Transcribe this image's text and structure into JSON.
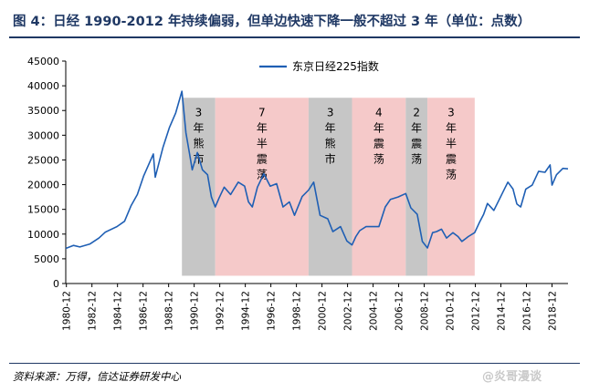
{
  "title": "图 4：日经 1990-2012 年持续偏弱，但单边快速下降一般不超过 3 年（单位：点数）",
  "source": "资料来源：万得，信达证券研发中心",
  "watermark": "@炎哥漫谈",
  "colors": {
    "line": "#1f5fb4",
    "bear": "#c6c6c6",
    "range": "#f5c9c9",
    "title": "#1f3864"
  },
  "chart_data": {
    "type": "line",
    "title": "",
    "xlabel": "",
    "ylabel": "",
    "ylim": [
      0,
      45000
    ],
    "yticks": [
      0,
      5000,
      10000,
      15000,
      20000,
      25000,
      30000,
      35000,
      40000,
      45000
    ],
    "xticks": [
      "1980-12",
      "1982-12",
      "1984-12",
      "1986-12",
      "1988-12",
      "1990-12",
      "1992-12",
      "1994-12",
      "1996-12",
      "1998-12",
      "2000-12",
      "2002-12",
      "2004-12",
      "2006-12",
      "2008-12",
      "2010-12",
      "2012-12",
      "2014-12",
      "2016-12",
      "2018-12"
    ],
    "xlim": [
      1980.9,
      2020.2
    ],
    "grid": false,
    "legend": "top-center",
    "series": [
      {
        "name": "东京日经225指数",
        "x": [
          1980.9,
          1981.5,
          1982.0,
          1982.8,
          1983.5,
          1984.0,
          1984.9,
          1985.5,
          1986.0,
          1986.5,
          1987.0,
          1987.75,
          1987.9,
          1988.5,
          1989.0,
          1989.5,
          1989.99,
          1990.3,
          1990.6,
          1990.8,
          1991.2,
          1991.6,
          1992.0,
          1992.3,
          1992.6,
          1992.9,
          1993.3,
          1993.8,
          1994.4,
          1994.9,
          1995.2,
          1995.5,
          1995.9,
          1996.4,
          1996.9,
          1997.4,
          1997.9,
          1998.4,
          1998.8,
          1999.4,
          1999.9,
          2000.3,
          2000.8,
          2001.4,
          2001.8,
          2002.4,
          2002.9,
          2003.3,
          2003.6,
          2003.9,
          2004.4,
          2004.9,
          2005.4,
          2005.9,
          2006.3,
          2006.9,
          2007.5,
          2007.9,
          2008.4,
          2008.8,
          2009.2,
          2009.6,
          2009.9,
          2010.3,
          2010.7,
          2011.2,
          2011.6,
          2011.9,
          2012.4,
          2012.9,
          2013.3,
          2013.6,
          2013.9,
          2014.4,
          2014.9,
          2015.3,
          2015.5,
          2015.9,
          2016.2,
          2016.5,
          2016.9,
          2017.4,
          2017.9,
          2018.4,
          2018.8,
          2018.95,
          2019.3,
          2019.8,
          2020.2
        ],
        "values": [
          7100,
          7700,
          7400,
          8000,
          9200,
          10400,
          11500,
          12600,
          15700,
          18000,
          21800,
          26200,
          21500,
          27500,
          31500,
          34500,
          38900,
          30500,
          26000,
          23000,
          26500,
          23000,
          22000,
          17500,
          15500,
          17300,
          19500,
          18000,
          20500,
          19700,
          16500,
          15500,
          19500,
          22200,
          19700,
          20200,
          15500,
          16500,
          13800,
          17600,
          18900,
          20500,
          13800,
          13100,
          10500,
          11500,
          8600,
          7800,
          9500,
          10700,
          11500,
          11500,
          11500,
          15500,
          17000,
          17500,
          18200,
          15300,
          14000,
          8500,
          7200,
          10300,
          10500,
          11000,
          9200,
          10300,
          9500,
          8500,
          9500,
          10300,
          12500,
          14000,
          16200,
          14800,
          17400,
          19500,
          20500,
          19100,
          16100,
          15500,
          19100,
          19900,
          22700,
          22500,
          24000,
          19900,
          22000,
          23300,
          23200
        ]
      }
    ],
    "shaded_regions": [
      {
        "from": 1989.99,
        "to": 1992.6,
        "kind": "bear",
        "label": [
          "3",
          "年",
          "熊",
          "市"
        ]
      },
      {
        "from": 1992.6,
        "to": 1999.9,
        "kind": "range",
        "label": [
          "7",
          "年",
          "半",
          "震",
          "荡"
        ]
      },
      {
        "from": 1999.9,
        "to": 2003.3,
        "kind": "bear",
        "label": [
          "3",
          "年",
          "熊",
          "市"
        ]
      },
      {
        "from": 2003.3,
        "to": 2007.5,
        "kind": "range",
        "label": [
          "4",
          "年",
          "震",
          "荡"
        ]
      },
      {
        "from": 2007.5,
        "to": 2009.2,
        "kind": "bear",
        "label": [
          "2",
          "年",
          "震",
          "荡"
        ]
      },
      {
        "from": 2009.2,
        "to": 2012.9,
        "kind": "range",
        "label": [
          "3",
          "年",
          "半",
          "震",
          "荡"
        ]
      }
    ]
  }
}
